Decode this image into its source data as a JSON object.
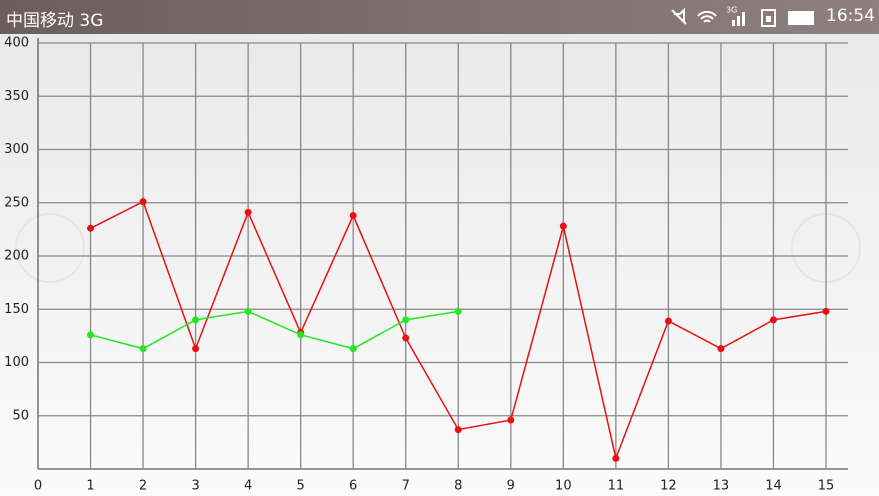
{
  "status_bar": {
    "carrier": "中国移动 3G",
    "network": "3G",
    "time": "16:54"
  },
  "chart_data": {
    "type": "line",
    "x": [
      1,
      2,
      3,
      4,
      5,
      6,
      7,
      8,
      9,
      10,
      11,
      12,
      13,
      14,
      15
    ],
    "series": [
      {
        "color": "#e81010",
        "values": [
          226,
          251,
          113,
          241,
          128,
          238,
          123,
          37,
          46,
          228,
          10,
          139,
          113,
          140,
          148
        ]
      },
      {
        "color": "#22e822",
        "values": [
          126,
          113,
          140,
          148,
          126,
          113,
          140,
          148,
          null,
          null,
          null,
          null,
          null,
          null,
          null
        ]
      }
    ],
    "xlim": [
      0,
      15
    ],
    "xticks": [
      0,
      1,
      2,
      3,
      4,
      5,
      6,
      7,
      8,
      9,
      10,
      11,
      12,
      13,
      14,
      15
    ],
    "ylim": [
      0,
      400
    ],
    "yticks": [
      50,
      100,
      150,
      200,
      250,
      300,
      350,
      400
    ],
    "grid": true
  }
}
